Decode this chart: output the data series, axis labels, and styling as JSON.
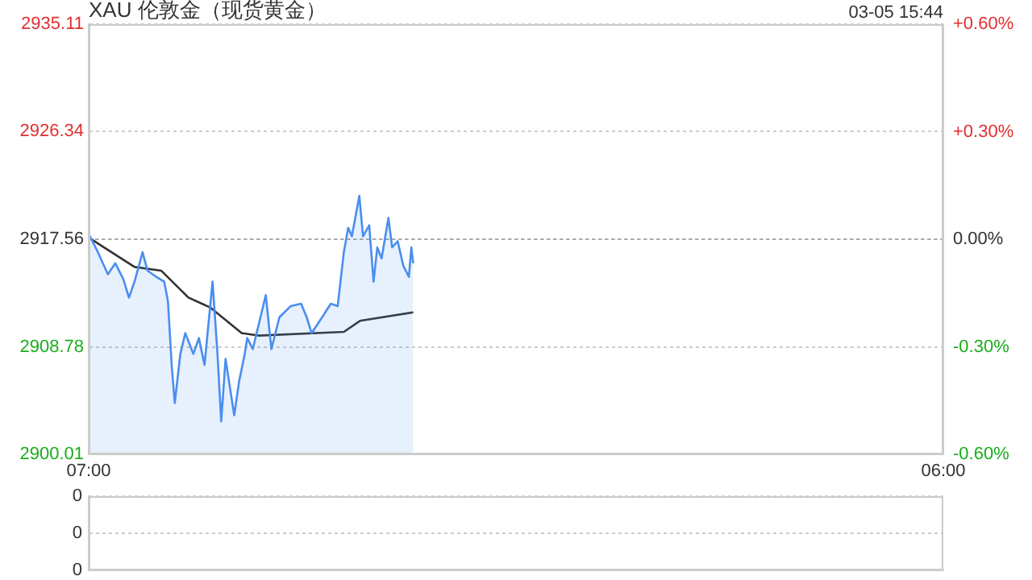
{
  "chart_data": [
    {
      "type": "line",
      "title": "XAU 伦敦金（现货黄金）",
      "annotations": [
        "03-05 15:44"
      ],
      "xlim": [
        "--03-05T07:00",
        "--03-06T06:00"
      ],
      "xticks": [
        {
          "value": "--03-05T07:00",
          "label": "07:00"
        },
        {
          "value": "--03-06T06:00",
          "label": "06:00"
        }
      ],
      "ylim": [
        2900.01,
        2935.11
      ],
      "yticks": [
        2900.01,
        2908.78,
        2917.56,
        2926.34,
        2935.11
      ],
      "y2lim": [
        -0.6,
        0.6
      ],
      "y2ticks": [
        {
          "value": -0.6,
          "label": "-0.60%"
        },
        {
          "value": -0.3,
          "label": "-0.30%"
        },
        {
          "value": 0,
          "label": "0.00%"
        },
        {
          "value": 0.3,
          "label": "+0.30%"
        },
        {
          "value": 0.6,
          "label": "+0.60%"
        }
      ],
      "grid": "y",
      "marker": "none",
      "ref_lines": [
        {
          "axis": "y",
          "value": 2917.56,
          "color": "#aaaaaa",
          "line_style": "dotted"
        }
      ],
      "series": [
        {
          "type": "area",
          "color": "#4a8ef0",
          "x": [
            "--03-05T07:00",
            "--03-05T07:13",
            "--03-05T07:31",
            "--03-05T07:43",
            "--03-05T07:56",
            "--03-05T08:05",
            "--03-05T08:14",
            "--03-05T08:27",
            "--03-05T08:35",
            "--03-05T08:49",
            "--03-05T09:02",
            "--03-05T09:08",
            "--03-05T09:14",
            "--03-05T09:19",
            "--03-05T09:28",
            "--03-05T09:36",
            "--03-05T09:49",
            "--03-05T09:58",
            "--03-05T10:07",
            "--03-05T10:20",
            "--03-05T10:28",
            "--03-05T10:34",
            "--03-05T10:41",
            "--03-05T10:55",
            "--03-05T11:03",
            "--03-05T11:12",
            "--03-05T11:16",
            "--03-05T11:25",
            "--03-05T11:46",
            "--03-05T11:55",
            "--03-05T12:08",
            "--03-05T12:26",
            "--03-05T12:43",
            "--03-05T12:52",
            "--03-05T13:00",
            "--03-05T13:17",
            "--03-05T13:31",
            "--03-05T13:42",
            "--03-05T13:52",
            "--03-05T13:59",
            "--03-05T14:05",
            "--03-05T14:17",
            "--03-05T14:23",
            "--03-05T14:33",
            "--03-05T14:40",
            "--03-05T14:46",
            "--03-05T14:53",
            "--03-05T15:04",
            "--03-05T15:10",
            "--03-05T15:19",
            "--03-05T15:28",
            "--03-05T15:37",
            "--03-05T15:41",
            "--03-05T15:44"
          ],
          "values": [
            2918.0,
            2916.7,
            2914.7,
            2915.6,
            2914.3,
            2912.8,
            2914.1,
            2916.5,
            2915.0,
            2914.5,
            2914.1,
            2912.5,
            2907.3,
            2904.2,
            2908.2,
            2909.9,
            2908.2,
            2909.5,
            2907.3,
            2914.1,
            2908.2,
            2902.7,
            2907.8,
            2903.2,
            2906.0,
            2908.2,
            2909.5,
            2908.6,
            2913.0,
            2908.6,
            2911.2,
            2912.1,
            2912.3,
            2911.2,
            2909.9,
            2911.2,
            2912.3,
            2912.1,
            2916.5,
            2918.5,
            2917.8,
            2921.1,
            2917.8,
            2918.7,
            2914.1,
            2916.9,
            2916.0,
            2919.3,
            2916.9,
            2917.4,
            2915.4,
            2914.5,
            2916.9,
            2915.6
          ]
        },
        {
          "type": "line",
          "color": "#333333",
          "x": [
            "--03-05T07:00",
            "--03-05T08:14",
            "--03-05T08:57",
            "--03-05T09:41",
            "--03-05T10:16",
            "--03-05T11:07",
            "--03-05T11:34",
            "--03-05T13:52",
            "--03-05T14:18",
            "--03-05T15:44"
          ],
          "values": [
            2917.7,
            2915.3,
            2915.0,
            2912.8,
            2912.0,
            2909.9,
            2909.7,
            2910.0,
            2910.9,
            2911.6
          ]
        }
      ]
    },
    {
      "type": "other",
      "annotations": [
        "0",
        "0",
        "0"
      ]
    }
  ]
}
